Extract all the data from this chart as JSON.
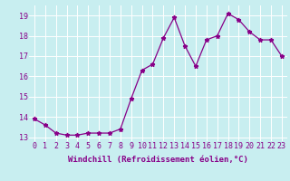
{
  "x": [
    0,
    1,
    2,
    3,
    4,
    5,
    6,
    7,
    8,
    9,
    10,
    11,
    12,
    13,
    14,
    15,
    16,
    17,
    18,
    19,
    20,
    21,
    22,
    23
  ],
  "y": [
    13.9,
    13.6,
    13.2,
    13.1,
    13.1,
    13.2,
    13.2,
    13.2,
    13.4,
    14.9,
    16.3,
    16.6,
    17.9,
    18.9,
    17.5,
    16.5,
    17.8,
    18.0,
    19.1,
    18.8,
    18.2,
    17.8,
    17.8,
    17.0
  ],
  "xlabel": "Windchill (Refroidissement éolien,°C)",
  "ylim": [
    12.8,
    19.5
  ],
  "yticks": [
    13,
    14,
    15,
    16,
    17,
    18,
    19
  ],
  "xticks": [
    0,
    1,
    2,
    3,
    4,
    5,
    6,
    7,
    8,
    9,
    10,
    11,
    12,
    13,
    14,
    15,
    16,
    17,
    18,
    19,
    20,
    21,
    22,
    23
  ],
  "xtick_labels": [
    "0",
    "1",
    "2",
    "3",
    "4",
    "5",
    "6",
    "7",
    "8",
    "9",
    "10",
    "11",
    "12",
    "13",
    "14",
    "15",
    "16",
    "17",
    "18",
    "19",
    "20",
    "21",
    "22",
    "23"
  ],
  "line_color": "#880088",
  "marker": "*",
  "markersize": 3.5,
  "linewidth": 0.9,
  "bg_color": "#c8eef0",
  "grid_color": "#ffffff",
  "font_color": "#880088",
  "tick_fontsize": 6.0,
  "xlabel_fontsize": 6.5
}
